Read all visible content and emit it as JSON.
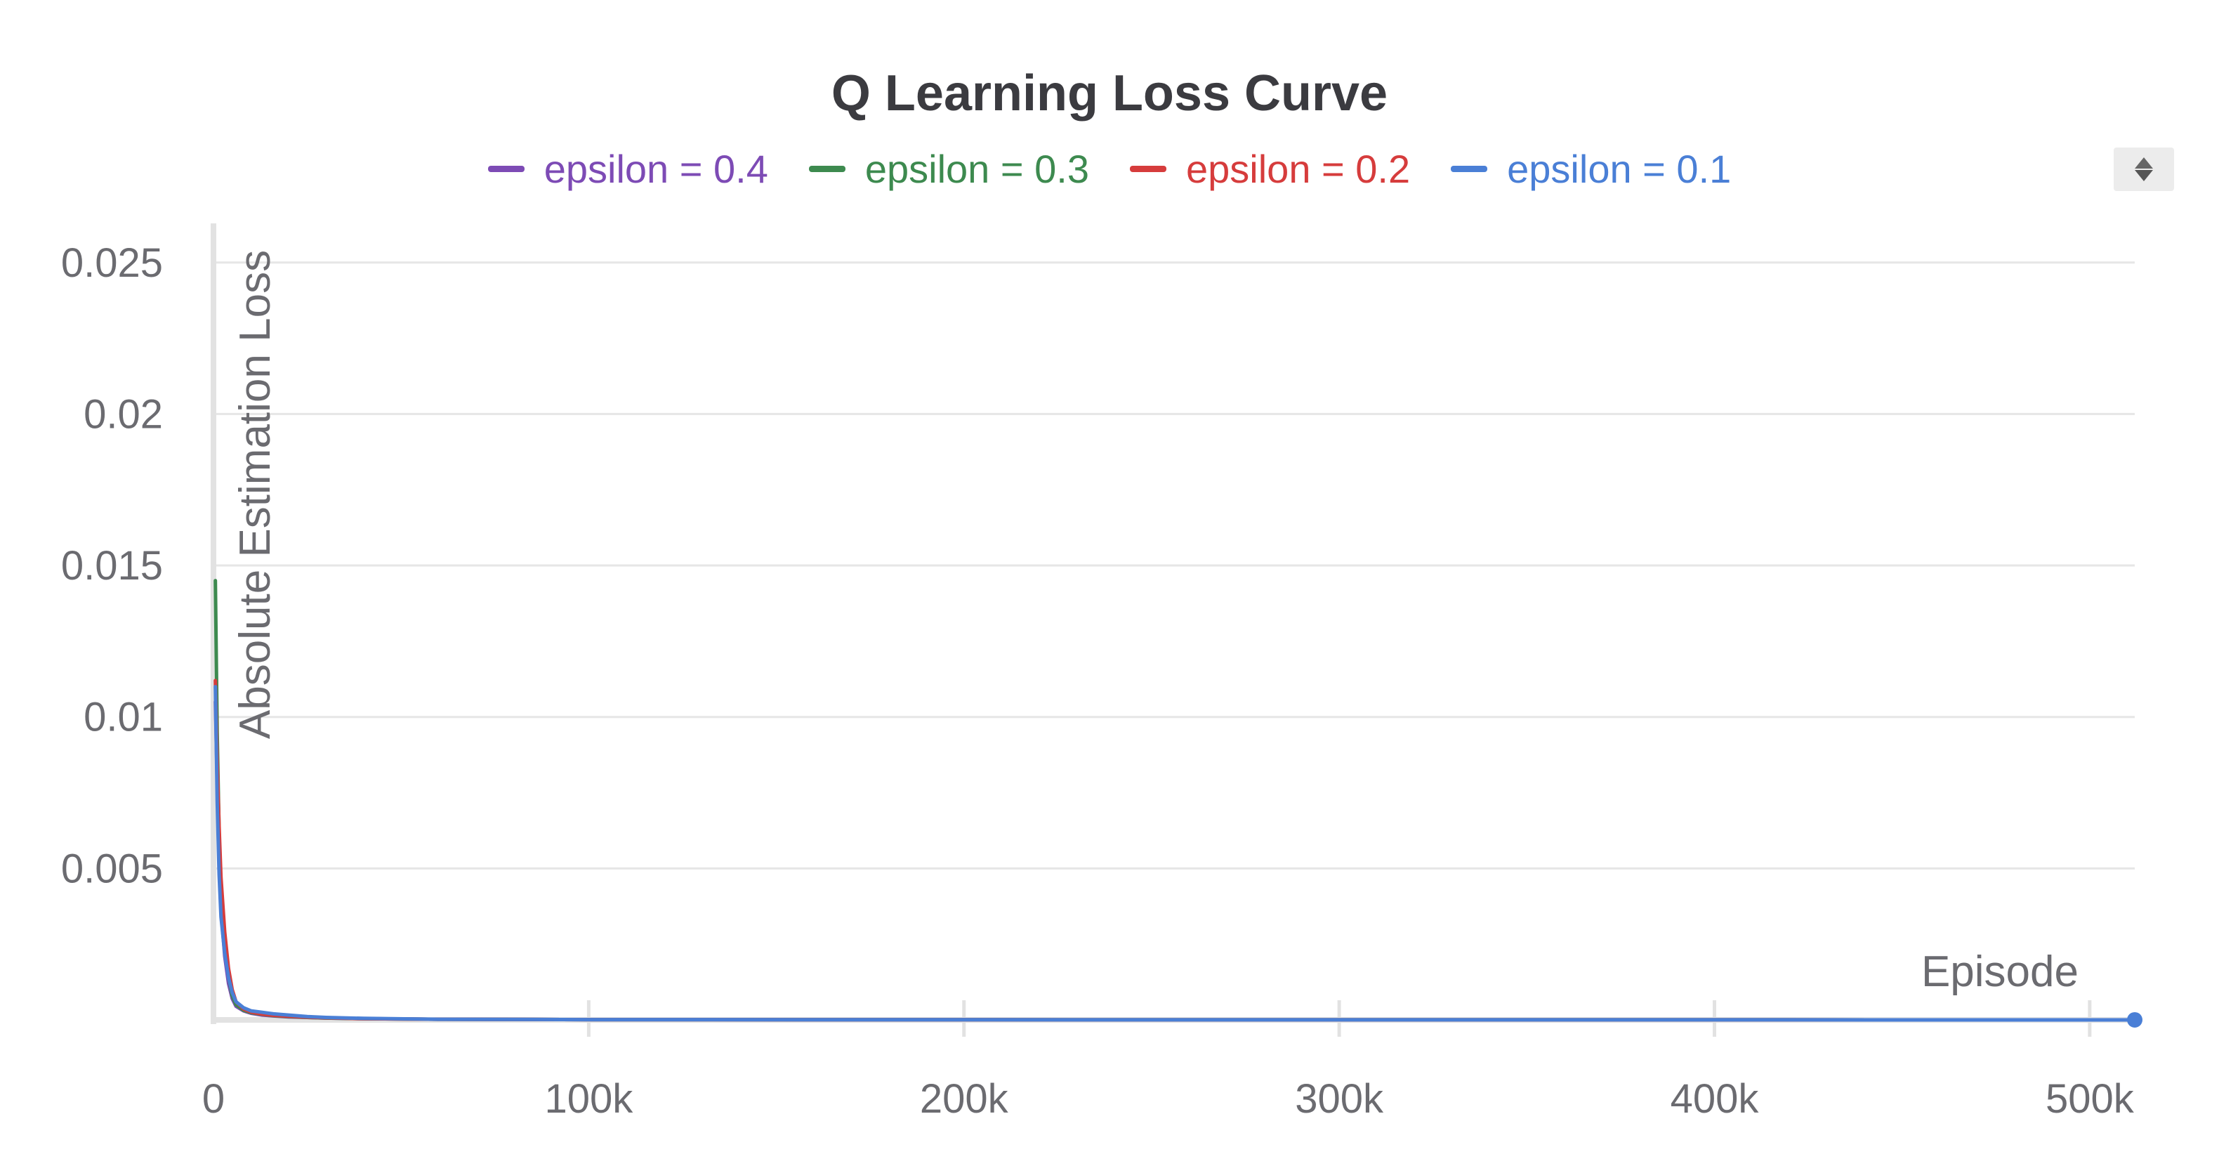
{
  "chart_data": {
    "type": "line",
    "title": "Q Learning Loss Curve",
    "xlabel": "Episode",
    "ylabel": "Absolute Estimation Loss",
    "xlim": [
      0,
      512000
    ],
    "ylim": [
      0,
      0.0262
    ],
    "x_ticks": [
      {
        "value": 0,
        "label": "0"
      },
      {
        "value": 100000,
        "label": "100k"
      },
      {
        "value": 200000,
        "label": "200k"
      },
      {
        "value": 300000,
        "label": "300k"
      },
      {
        "value": 400000,
        "label": "400k"
      },
      {
        "value": 500000,
        "label": "500k"
      }
    ],
    "y_ticks": [
      {
        "value": 0.005,
        "label": "0.005"
      },
      {
        "value": 0.01,
        "label": "0.01"
      },
      {
        "value": 0.015,
        "label": "0.015"
      },
      {
        "value": 0.02,
        "label": "0.02"
      },
      {
        "value": 0.025,
        "label": "0.025"
      }
    ],
    "grid": true,
    "legend_position": "top-center",
    "series": [
      {
        "name": "epsilon = 0.4",
        "color": "#7d4bb5",
        "x": [
          500,
          1000,
          1500,
          2000,
          3000,
          4000,
          5000,
          6000,
          8000,
          10000,
          13000,
          16000,
          20000,
          25000,
          30000,
          40000,
          60000,
          100000,
          200000,
          300000,
          400000,
          512000
        ],
        "y": [
          0.0105,
          0.0078,
          0.0052,
          0.0036,
          0.0021,
          0.0012,
          0.0007,
          0.00045,
          0.0003,
          0.00022,
          0.00016,
          0.00013,
          0.0001,
          8e-05,
          6e-05,
          4e-05,
          2e-05,
          1e-05,
          5e-06,
          3e-06,
          2e-06,
          1e-06
        ]
      },
      {
        "name": "epsilon = 0.3",
        "color": "#3d8a4f",
        "x": [
          500,
          1000,
          1500,
          2000,
          3000,
          4000,
          5000,
          6000,
          8000,
          10000,
          13000,
          16000,
          20000,
          25000,
          30000,
          40000,
          60000,
          100000,
          200000,
          300000,
          400000,
          512000
        ],
        "y": [
          0.0145,
          0.0095,
          0.0062,
          0.0041,
          0.0024,
          0.0014,
          0.0008,
          0.0005,
          0.00032,
          0.00024,
          0.00018,
          0.00014,
          0.00011,
          8e-05,
          6e-05,
          4e-05,
          2e-05,
          1e-05,
          5e-06,
          3e-06,
          2e-06,
          1e-06
        ]
      },
      {
        "name": "epsilon = 0.2",
        "color": "#d63c3c",
        "x": [
          500,
          1000,
          1500,
          2000,
          3000,
          4000,
          5000,
          6000,
          8000,
          10000,
          13000,
          16000,
          20000,
          25000,
          30000,
          40000,
          60000,
          100000,
          200000,
          300000,
          400000,
          512000
        ],
        "y": [
          0.0112,
          0.0085,
          0.0064,
          0.0047,
          0.0029,
          0.0017,
          0.001,
          0.0006,
          0.00036,
          0.00026,
          0.00019,
          0.00015,
          0.00012,
          9e-05,
          7e-05,
          4e-05,
          2e-05,
          1e-05,
          5e-06,
          3e-06,
          2e-06,
          1e-06
        ]
      },
      {
        "name": "epsilon = 0.1",
        "color": "#4a7fd6",
        "x": [
          500,
          1000,
          1500,
          2000,
          3000,
          4000,
          5000,
          6000,
          8000,
          10000,
          13000,
          16000,
          20000,
          25000,
          30000,
          40000,
          60000,
          100000,
          200000,
          300000,
          400000,
          512000
        ],
        "y": [
          0.011,
          0.0072,
          0.0048,
          0.0034,
          0.0022,
          0.0014,
          0.0009,
          0.0006,
          0.0004,
          0.0003,
          0.00025,
          0.0002,
          0.00016,
          0.00011,
          8e-05,
          5e-05,
          2e-05,
          1e-05,
          5e-06,
          3e-06,
          2e-06,
          1e-06
        ]
      }
    ]
  },
  "controls": {
    "legend_scroll_icon": "up-down-arrows-icon"
  }
}
